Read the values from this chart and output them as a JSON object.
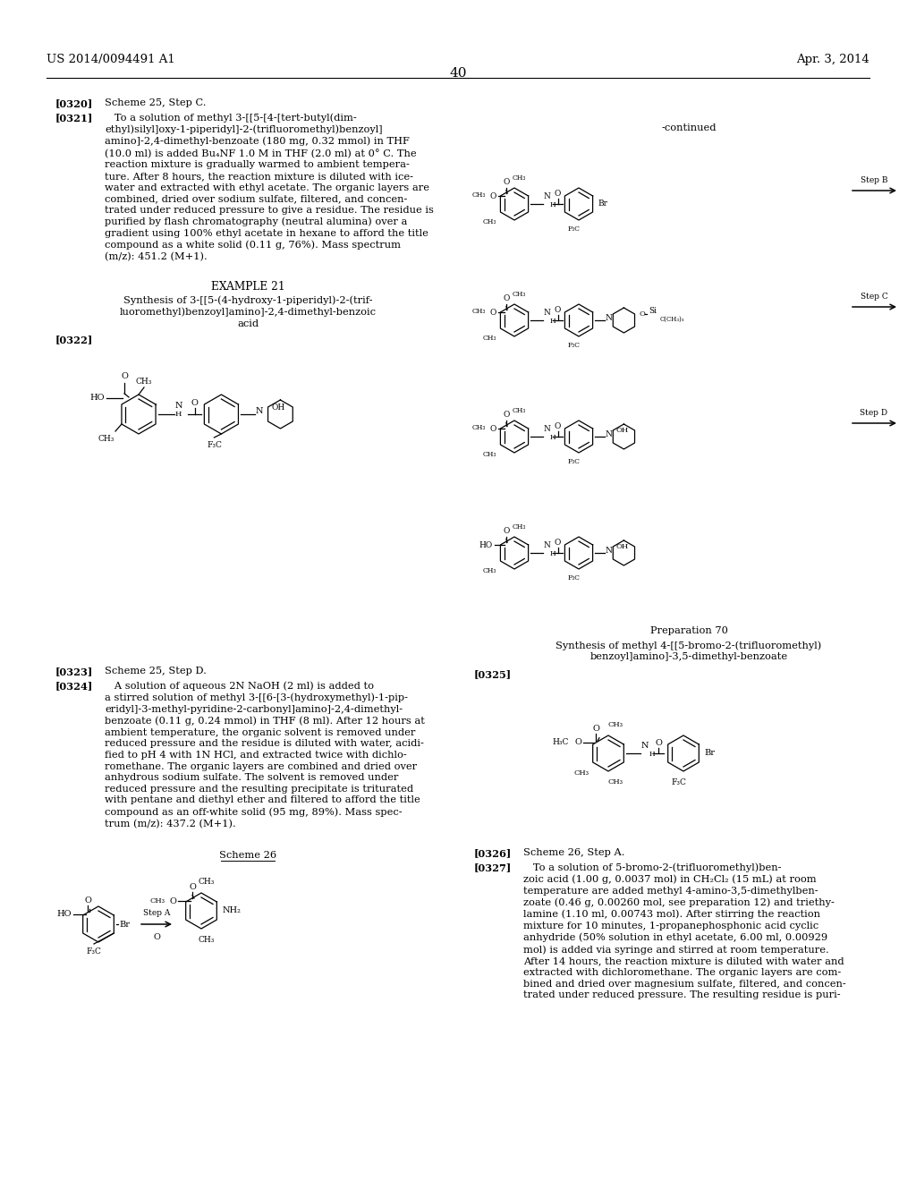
{
  "page_header_left": "US 2014/0094491 A1",
  "page_header_right": "Apr. 3, 2014",
  "page_number": "40",
  "background_color": "#ffffff",
  "text_color": "#000000",
  "figsize": [
    10.24,
    13.2
  ],
  "dpi": 100,
  "para_0320_tag": "[0320]",
  "para_0320_text": "Scheme 25, Step C.",
  "para_0321_tag": "[0321]",
  "para_0321_text": "   To a solution of methyl 3-[[5-[4-[tert-butyl(dim-\nethyl)silyl]oxy-1-piperidyl]-2-(trifluoromethyl)benzoyl]\namino]-2,4-dimethyl-benzoate (180 mg, 0.32 mmol) in THF\n(10.0 ml) is added Bu₄NF 1.0 M in THF (2.0 ml) at 0° C. The\nreaction mixture is gradually warmed to ambient tempera-\nture. After 8 hours, the reaction mixture is diluted with ice-\nwater and extracted with ethyl acetate. The organic layers are\ncombined, dried over sodium sulfate, filtered, and concen-\ntrated under reduced pressure to give a residue. The residue is\npurified by flash chromatography (neutral alumina) over a\ngradient using 100% ethyl acetate in hexane to afford the title\ncompound as a white solid (0.11 g, 76%). Mass spectrum\n(m/z): 451.2 (M+1).",
  "example21_label": "EXAMPLE 21",
  "example21_synth": "Synthesis of 3-[[5-(4-hydroxy-1-piperidyl)-2-(trif-\nluoromethyl)benzoyl]amino]-2,4-dimethyl-benzoic\nacid",
  "para_0322_tag": "[0322]",
  "para_0323_tag": "[0323]",
  "para_0323_text": "Scheme 25, Step D.",
  "para_0324_tag": "[0324]",
  "para_0324_text": "   A solution of aqueous 2N NaOH (2 ml) is added to\na stirred solution of methyl 3-[[6-[3-(hydroxymethyl)-1-pip-\neridyl]-3-methyl-pyridine-2-carbonyl]amino]-2,4-dimethyl-\nbenzoate (0.11 g, 0.24 mmol) in THF (8 ml). After 12 hours at\nambient temperature, the organic solvent is removed under\nreduced pressure and the residue is diluted with water, acidi-\nfied to pH 4 with 1N HCl, and extracted twice with dichlo-\nromethane. The organic layers are combined and dried over\nanhydrous sodium sulfate. The solvent is removed under\nreduced pressure and the resulting precipitate is triturated\nwith pentane and diethyl ether and filtered to afford the title\ncompound as an off-white solid (95 mg, 89%). Mass spec-\ntrum (m/z): 437.2 (M+1).",
  "scheme26_label": "Scheme 26",
  "continued_label": "-continued",
  "prep70_label": "Preparation 70",
  "prep70_synth": "Synthesis of methyl 4-[[5-bromo-2-(trifluoromethyl)\nbenzoyl]amino]-3,5-dimethyl-benzoate",
  "para_0325_tag": "[0325]",
  "para_0326_tag": "[0326]",
  "para_0326_text": "Scheme 26, Step A.",
  "para_0327_tag": "[0327]",
  "para_0327_text": "   To a solution of 5-bromo-2-(trifluoromethyl)ben-\nzoic acid (1.00 g, 0.0037 mol) in CH₂Cl₂ (15 mL) at room\ntemperature are added methyl 4-amino-3,5-dimethylben-\nzoate (0.46 g, 0.00260 mol, see preparation 12) and triethy-\nlamine (1.10 ml, 0.00743 mol). After stirring the reaction\nmixture for 10 minutes, 1-propanephosphonic acid cyclic\nanhydride (50% solution in ethyl acetate, 6.00 ml, 0.00929\nmol) is added via syringe and stirred at room temperature.\nAfter 14 hours, the reaction mixture is diluted with water and\nextracted with dichloromethane. The organic layers are com-\nbined and dried over magnesium sulfate, filtered, and concen-\ntrated under reduced pressure. The resulting residue is puri-",
  "step_b_label": "Step B",
  "step_c_label": "Step C",
  "step_d_label": "Step D",
  "step_a_label": "Step A"
}
